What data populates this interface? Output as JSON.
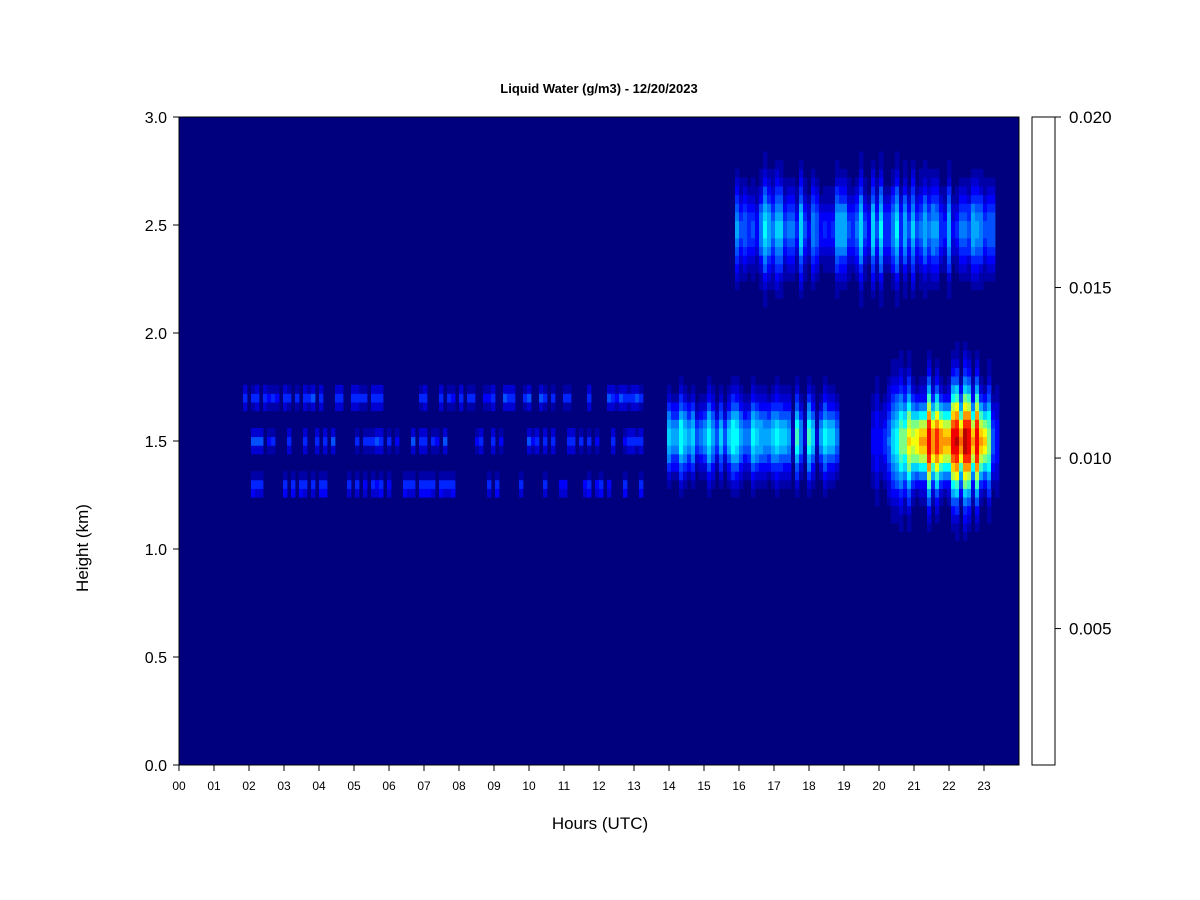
{
  "chart_data": {
    "type": "heatmap",
    "title": "Liquid Water (g/m3) - 12/20/2023",
    "xlabel": "Hours (UTC)",
    "ylabel": "Height (km)",
    "xlim": [
      0,
      24
    ],
    "ylim": [
      0.0,
      3.0
    ],
    "x_ticks": [
      "00",
      "01",
      "02",
      "03",
      "04",
      "05",
      "06",
      "07",
      "08",
      "09",
      "10",
      "11",
      "12",
      "13",
      "14",
      "15",
      "16",
      "17",
      "18",
      "19",
      "20",
      "21",
      "22",
      "23"
    ],
    "y_ticks": [
      "0.0",
      "0.5",
      "1.0",
      "1.5",
      "2.0",
      "2.5",
      "3.0"
    ],
    "colorbar": {
      "range": [
        0.001,
        0.02
      ],
      "ticks": [
        "0.005",
        "0.010",
        "0.015",
        "0.020"
      ],
      "colors": [
        "#00007F",
        "#0000A8",
        "#0000D1",
        "#0000FA",
        "#0024FF",
        "#0050FF",
        "#007BFF",
        "#00A6FF",
        "#00D1FF",
        "#00FFFF",
        "#3DFFC2",
        "#7BFF84",
        "#B8FF47",
        "#F5FF0A",
        "#FFCF00",
        "#FF9700",
        "#FF5E00",
        "#FF2600",
        "#F20000",
        "#B70000",
        "#7F0000"
      ]
    },
    "background_value": 0.001,
    "layers": [
      {
        "name": "upper",
        "center_km": 2.48,
        "half_width_km": 0.24,
        "x_start": 15.9,
        "x_end": 23.3,
        "peak_value": 0.01
      },
      {
        "name": "lower-a",
        "center_km": 1.7,
        "half_width_km": 0.05,
        "x_start": 1.8,
        "x_end": 13.3,
        "peak_value": 0.006
      },
      {
        "name": "lower-b",
        "center_km": 1.5,
        "half_width_km": 0.05,
        "x_start": 2.1,
        "x_end": 13.3,
        "peak_value": 0.006
      },
      {
        "name": "lower-c",
        "center_km": 1.29,
        "half_width_km": 0.05,
        "x_start": 2.1,
        "x_end": 13.3,
        "peak_value": 0.006
      },
      {
        "name": "mid-cloud",
        "center_km": 1.52,
        "half_width_km": 0.2,
        "x_start": 13.9,
        "x_end": 18.9,
        "peak_value": 0.011
      },
      {
        "name": "core",
        "center_km": 1.5,
        "half_width_km": 0.28,
        "x_start": 19.8,
        "x_end": 23.4,
        "peak_value": 0.02
      }
    ]
  }
}
